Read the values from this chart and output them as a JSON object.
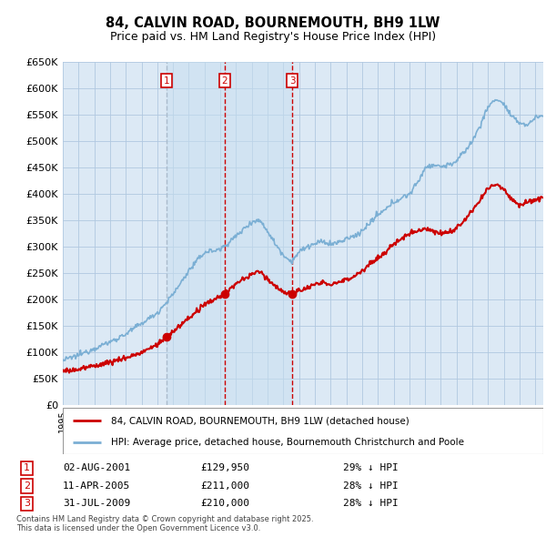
{
  "title": "84, CALVIN ROAD, BOURNEMOUTH, BH9 1LW",
  "subtitle": "Price paid vs. HM Land Registry's House Price Index (HPI)",
  "ylabel_ticks": [
    "£0",
    "£50K",
    "£100K",
    "£150K",
    "£200K",
    "£250K",
    "£300K",
    "£350K",
    "£400K",
    "£450K",
    "£500K",
    "£550K",
    "£600K",
    "£650K"
  ],
  "ytick_values": [
    0,
    50000,
    100000,
    150000,
    200000,
    250000,
    300000,
    350000,
    400000,
    450000,
    500000,
    550000,
    600000,
    650000
  ],
  "hpi_color": "#7bafd4",
  "price_color": "#cc0000",
  "background_color": "#ffffff",
  "chart_bg_color": "#dce9f5",
  "grid_color": "#b0c8e0",
  "transactions": [
    {
      "num": 1,
      "date": "02-AUG-2001",
      "price": 129950,
      "year": 2001.58,
      "hpi_pct": "29%"
    },
    {
      "num": 2,
      "date": "11-APR-2005",
      "price": 211000,
      "year": 2005.27,
      "hpi_pct": "28%"
    },
    {
      "num": 3,
      "date": "31-JUL-2009",
      "price": 210000,
      "year": 2009.58,
      "hpi_pct": "28%"
    }
  ],
  "legend_property_label": "84, CALVIN ROAD, BOURNEMOUTH, BH9 1LW (detached house)",
  "legend_hpi_label": "HPI: Average price, detached house, Bournemouth Christchurch and Poole",
  "footnote": "Contains HM Land Registry data © Crown copyright and database right 2025.\nThis data is licensed under the Open Government Licence v3.0.",
  "xmin": 1995,
  "xmax": 2025.5,
  "ymin": 0,
  "ymax": 650000
}
